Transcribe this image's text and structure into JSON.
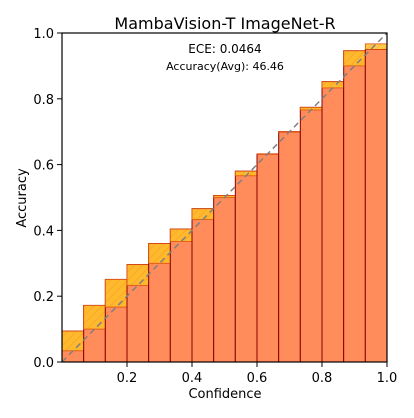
{
  "chart_data": {
    "type": "bar",
    "title": "MambaVision-T  ImageNet-R",
    "xlabel": "Confidence",
    "ylabel": "Accuracy",
    "xlim": [
      0.0,
      1.0
    ],
    "ylim": [
      0.0,
      1.0
    ],
    "xticks": [
      "0.2",
      "0.4",
      "0.6",
      "0.8",
      "1.0"
    ],
    "yticks": [
      "0.0",
      "0.2",
      "0.4",
      "0.6",
      "0.8",
      "1.0"
    ],
    "annotations": {
      "ece": "ECE: 0.0464",
      "accuracy": "Accuracy(Avg): 46.46"
    },
    "bins": [
      0.0,
      0.0667,
      0.1333,
      0.2,
      0.2667,
      0.3333,
      0.4,
      0.4667,
      0.5333,
      0.6,
      0.6667,
      0.7333,
      0.8,
      0.8667,
      0.9333,
      1.0
    ],
    "accuracy_values": [
      0.094,
      0.172,
      0.251,
      0.296,
      0.36,
      0.404,
      0.466,
      0.506,
      0.58,
      0.632,
      0.7,
      0.774,
      0.852,
      0.946,
      0.95
    ],
    "confidence_values": [
      0.034,
      0.1,
      0.167,
      0.233,
      0.3,
      0.366,
      0.433,
      0.5,
      0.566,
      0.633,
      0.7,
      0.766,
      0.833,
      0.9,
      0.967
    ],
    "colors": {
      "bar_fill": "#FF8C5A",
      "bar_edge": "#8B0000",
      "gap_fill": "#FFC125",
      "gap_edge": "#E05010",
      "diagonal": "#808080",
      "axes": "#000000"
    },
    "grid": false
  }
}
